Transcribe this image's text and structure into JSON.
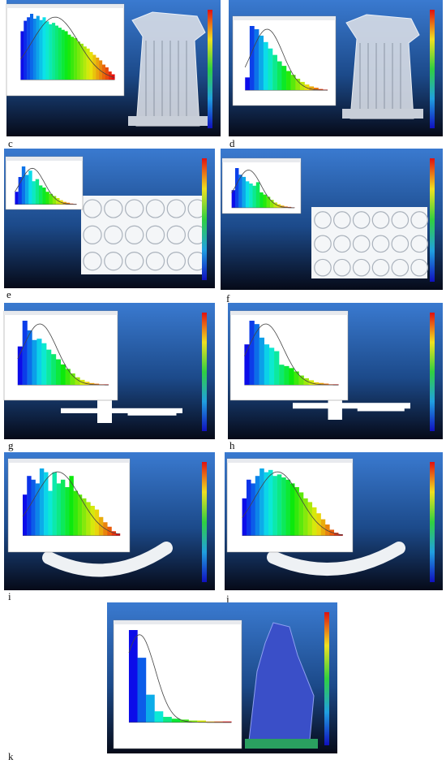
{
  "panels": [
    {
      "label": "c",
      "bars": [
        70,
        85,
        90,
        95,
        88,
        92,
        86,
        90,
        84,
        80,
        82,
        78,
        75,
        72,
        70,
        65,
        62,
        60,
        55,
        52,
        48,
        45,
        40,
        36,
        32,
        28,
        22,
        18,
        12,
        8
      ]
    },
    {
      "label": "d",
      "bars": [
        20,
        100,
        95,
        85,
        75,
        65,
        55,
        45,
        38,
        30,
        24,
        18,
        13,
        9,
        6,
        4,
        2,
        1
      ]
    },
    {
      "label": "e",
      "bars": [
        30,
        65,
        90,
        70,
        80,
        55,
        60,
        45,
        40,
        30,
        25,
        20,
        15,
        10,
        6,
        4,
        2,
        1
      ]
    },
    {
      "label": "f",
      "bars": [
        40,
        90,
        75,
        70,
        60,
        55,
        50,
        58,
        35,
        30,
        25,
        18,
        12,
        8,
        5,
        3,
        2,
        1
      ]
    },
    {
      "label": "g",
      "bars": [
        60,
        100,
        85,
        70,
        72,
        65,
        55,
        48,
        40,
        32,
        25,
        18,
        12,
        8,
        5,
        3,
        2,
        1,
        1
      ]
    },
    {
      "label": "h",
      "bars": [
        60,
        95,
        90,
        70,
        60,
        55,
        50,
        30,
        28,
        25,
        20,
        14,
        10,
        7,
        4,
        3,
        2,
        1,
        1
      ]
    },
    {
      "label": "i",
      "bars": [
        55,
        80,
        75,
        70,
        90,
        85,
        60,
        85,
        70,
        75,
        65,
        80,
        60,
        55,
        50,
        45,
        40,
        35,
        25,
        18,
        12,
        6,
        3
      ]
    },
    {
      "label": "j",
      "bars": [
        50,
        75,
        70,
        80,
        90,
        85,
        88,
        80,
        82,
        78,
        75,
        70,
        65,
        58,
        50,
        45,
        38,
        30,
        22,
        15,
        8,
        4,
        2
      ]
    },
    {
      "label": "k",
      "bars": [
        100,
        70,
        30,
        12,
        6,
        4,
        3,
        2,
        2,
        1,
        1,
        1
      ]
    }
  ]
}
